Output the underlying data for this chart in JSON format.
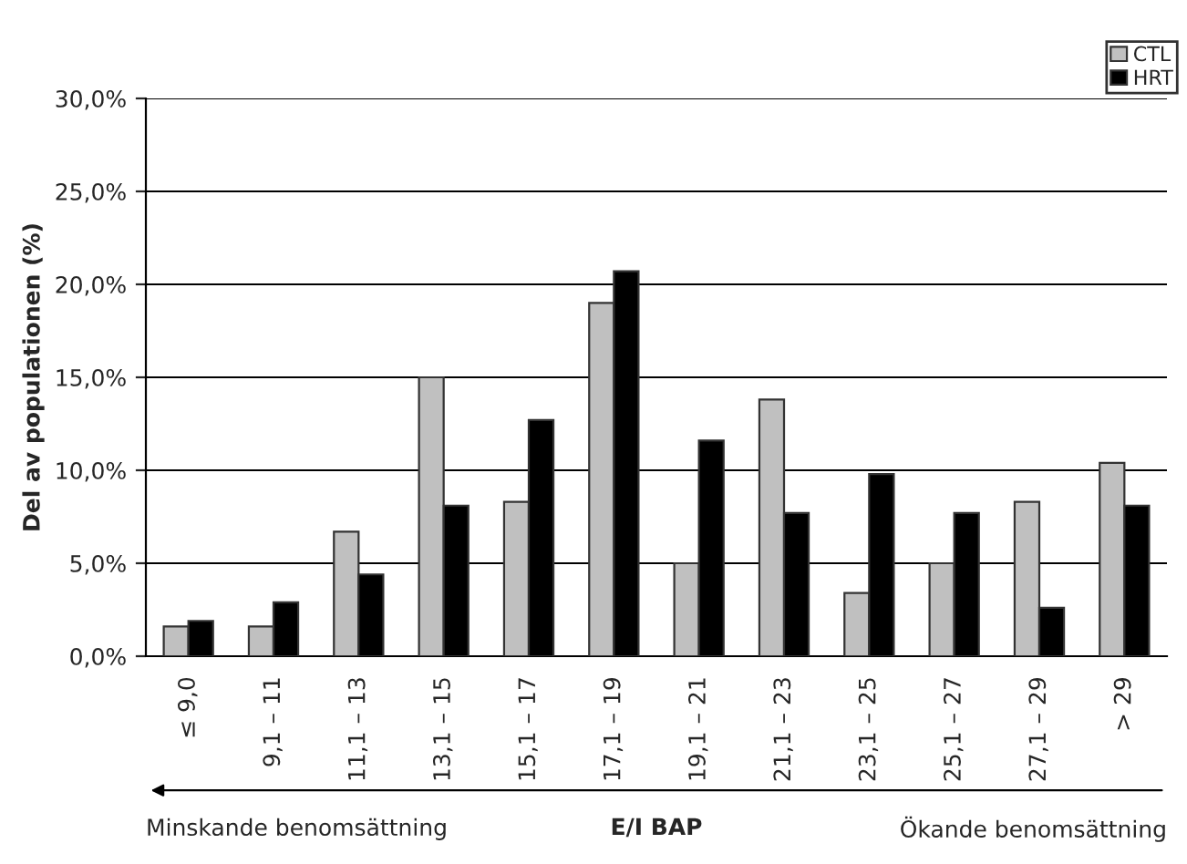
{
  "chart_data": {
    "type": "bar",
    "categories": [
      "≤ 9,0",
      "9,1 – 11",
      "11,1 – 13",
      "13,1 – 15",
      "15,1 – 17",
      "17,1 – 19",
      "19,1 – 21",
      "21,1 – 23",
      "23,1 – 25",
      "25,1 – 27",
      "27,1 – 29",
      "> 29"
    ],
    "series": [
      {
        "name": "CTL",
        "color": "#c0c0c0",
        "values": [
          1.6,
          1.6,
          6.7,
          15.0,
          8.3,
          19.0,
          5.0,
          13.8,
          3.4,
          5.0,
          8.3,
          10.4
        ]
      },
      {
        "name": "HRT",
        "color": "#000000",
        "values": [
          1.9,
          2.9,
          4.4,
          8.1,
          12.7,
          20.7,
          11.6,
          7.7,
          9.8,
          7.7,
          2.6,
          8.1
        ]
      }
    ],
    "ylabel": "Del av populationen (%)",
    "xlabel": "E/I BAP",
    "annotations": [
      "Minskande benomsättning",
      "Ökande benomsättning"
    ],
    "ylim": [
      0,
      30
    ],
    "yticks": [
      {
        "value": 0,
        "label": "0,0%"
      },
      {
        "value": 5,
        "label": "5,0%"
      },
      {
        "value": 10,
        "label": "10,0%"
      },
      {
        "value": 15,
        "label": "15,0%"
      },
      {
        "value": 20,
        "label": "20,0%"
      },
      {
        "value": 25,
        "label": "25,0%"
      },
      {
        "value": 30,
        "label": "30,0%"
      }
    ],
    "grid": "y",
    "legend": "top right"
  }
}
